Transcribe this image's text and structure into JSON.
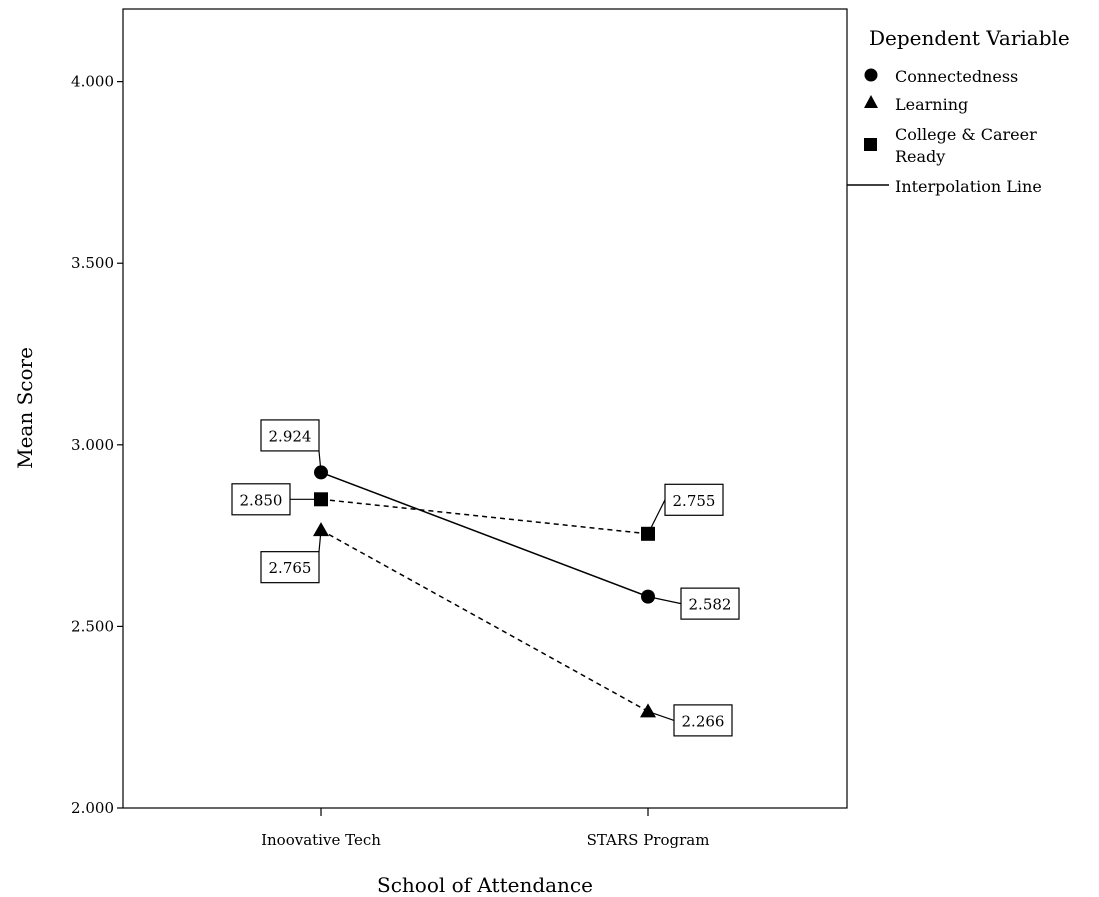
{
  "chart_data": {
    "type": "line",
    "xlabel": "School of Attendance",
    "ylabel": "Mean Score",
    "categories": [
      "Inoovative Tech",
      "STARS Program"
    ],
    "ylim": [
      2.0,
      4.2
    ],
    "yticks": [
      2.0,
      2.5,
      3.0,
      3.5,
      4.0
    ],
    "ytick_labels": [
      "2.000",
      "2.500",
      "3.000",
      "3.500",
      "4.000"
    ],
    "legend": {
      "title": "Dependent Variable",
      "position": "right",
      "interpolation_label": "Interpolation Line"
    },
    "series": [
      {
        "name": "Connectedness",
        "marker": "circle",
        "line": "solid",
        "values": [
          2.924,
          2.582
        ],
        "labels": [
          "2.924",
          "2.582"
        ]
      },
      {
        "name": "Learning",
        "marker": "triangle",
        "line": "dashed",
        "values": [
          2.765,
          2.266
        ],
        "labels": [
          "2.765",
          "2.266"
        ]
      },
      {
        "name": "College & Career Ready",
        "marker": "square",
        "line": "dashed",
        "values": [
          2.85,
          2.755
        ],
        "labels": [
          "2.850",
          "2.755"
        ]
      }
    ],
    "grid": false
  }
}
